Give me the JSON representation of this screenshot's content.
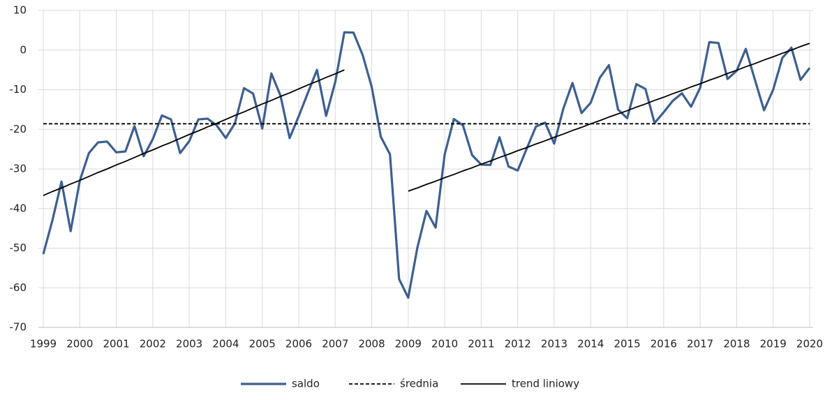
{
  "chart_data": {
    "type": "line",
    "categories": [
      "1999",
      null,
      null,
      null,
      "2000",
      null,
      null,
      null,
      "2001",
      null,
      null,
      null,
      "2002",
      null,
      null,
      null,
      "2003",
      null,
      null,
      null,
      "2004",
      null,
      null,
      null,
      "2005",
      null,
      null,
      null,
      "2006",
      null,
      null,
      null,
      "2007",
      null,
      null,
      null,
      "2008",
      null,
      null,
      null,
      "2009",
      null,
      null,
      null,
      "2010",
      null,
      null,
      null,
      "2011",
      null,
      null,
      null,
      "2012",
      null,
      null,
      null,
      "2013",
      null,
      null,
      null,
      "2014",
      null,
      null,
      null,
      "2015",
      null,
      null,
      null,
      "2016",
      null,
      null,
      null,
      "2017",
      null,
      null,
      null,
      "2018",
      null,
      null,
      null,
      "2019",
      null,
      null,
      null,
      "2020"
    ],
    "series": [
      {
        "name": "saldo",
        "color": "#3d5f8f",
        "dashed": false,
        "width": 3.2,
        "values": [
          -51.5,
          -43,
          -33.2,
          -45.7,
          -33,
          -26,
          -23.3,
          -23.1,
          -25.8,
          -25.6,
          -19.2,
          -26.8,
          -22.5,
          -16.5,
          -17.5,
          -26,
          -23,
          -17.5,
          -17.3,
          -19,
          -22.2,
          -18.5,
          -9.6,
          -11,
          -19.8,
          -5.9,
          -11.5,
          -22.2,
          -16.7,
          -10.8,
          -5,
          -16.6,
          -8.1,
          4.5,
          4.4,
          -1.2,
          -9.3,
          -21.9,
          -26.3,
          -57.8,
          -62.5,
          -49.9,
          -40.6,
          -44.8,
          -26.3,
          -17.4,
          -19,
          -26.5,
          -28.9,
          -29,
          -22,
          -29.4,
          -30.4,
          -24.8,
          -19.3,
          -18.3,
          -23.6,
          -14.8,
          -8.3,
          -15.9,
          -13.3,
          -7,
          -3.8,
          -15,
          -17.2,
          -8.6,
          -9.8,
          -18.4,
          -15.7,
          -12.8,
          -10.9,
          -14.3,
          -9.5,
          2,
          1.8,
          -7.3,
          -5.2,
          0.3,
          -7.5,
          -15.2,
          -10,
          -2,
          0.6,
          -7.5,
          -4.5
        ]
      },
      {
        "name": "średnia",
        "color": "#000000",
        "dashed": true,
        "width": 1.8,
        "values": [
          -18.6,
          -18.6,
          -18.6,
          -18.6,
          -18.6,
          -18.6,
          -18.6,
          -18.6,
          -18.6,
          -18.6,
          -18.6,
          -18.6,
          -18.6,
          -18.6,
          -18.6,
          -18.6,
          -18.6,
          -18.6,
          -18.6,
          -18.6,
          -18.6,
          -18.6,
          -18.6,
          -18.6,
          -18.6,
          -18.6,
          -18.6,
          -18.6,
          -18.6,
          -18.6,
          -18.6,
          -18.6,
          -18.6,
          -18.6,
          -18.6,
          -18.6,
          -18.6,
          -18.6,
          -18.6,
          -18.6,
          -18.6,
          -18.6,
          -18.6,
          -18.6,
          -18.6,
          -18.6,
          -18.6,
          -18.6,
          -18.6,
          -18.6,
          -18.6,
          -18.6,
          -18.6,
          -18.6,
          -18.6,
          -18.6,
          -18.6,
          -18.6,
          -18.6,
          -18.6,
          -18.6,
          -18.6,
          -18.6,
          -18.6,
          -18.6,
          -18.6,
          -18.6,
          -18.6,
          -18.6,
          -18.6,
          -18.6,
          -18.6,
          -18.6,
          -18.6,
          -18.6,
          -18.6,
          -18.6,
          -18.6,
          -18.6,
          -18.6,
          -18.6,
          -18.6,
          -18.6,
          -18.6,
          -18.6
        ]
      },
      {
        "name": "trend liniowy",
        "color": "#000000",
        "dashed": false,
        "width": 1.8,
        "values": [
          -36.7,
          -35.7,
          -34.8,
          -33.8,
          -32.9,
          -31.9,
          -30.9,
          -30.0,
          -29.0,
          -28.1,
          -27.1,
          -26.1,
          -25.2,
          -24.2,
          -23.3,
          -22.3,
          -21.3,
          -20.4,
          -19.4,
          -18.5,
          -17.5,
          -16.5,
          -15.6,
          -14.6,
          -13.6,
          -12.7,
          -11.7,
          -10.8,
          -9.8,
          -8.8,
          -7.9,
          -6.9,
          -6.0,
          -5.0,
          null,
          null,
          null,
          null,
          null,
          null,
          -35.6,
          -34.8,
          -33.9,
          -33.1,
          -32.2,
          -31.4,
          -30.5,
          -29.7,
          -28.8,
          -28.0,
          -27.1,
          -26.3,
          -25.4,
          -24.6,
          -23.7,
          -22.9,
          -22.0,
          -21.2,
          -20.3,
          -19.5,
          -18.6,
          -17.8,
          -16.9,
          -16.1,
          -15.3,
          -14.4,
          -13.6,
          -12.7,
          -11.9,
          -11.0,
          -10.2,
          -9.3,
          -8.5,
          -7.6,
          -6.8,
          -5.9,
          -5.1,
          -4.2,
          -3.4,
          -2.5,
          -1.7,
          -0.8,
          0.0,
          0.9,
          1.7
        ]
      }
    ],
    "ylim": [
      -70,
      10
    ],
    "yticks": [
      -70,
      -60,
      -50,
      -40,
      -30,
      -20,
      -10,
      0,
      10
    ],
    "grid": true
  }
}
